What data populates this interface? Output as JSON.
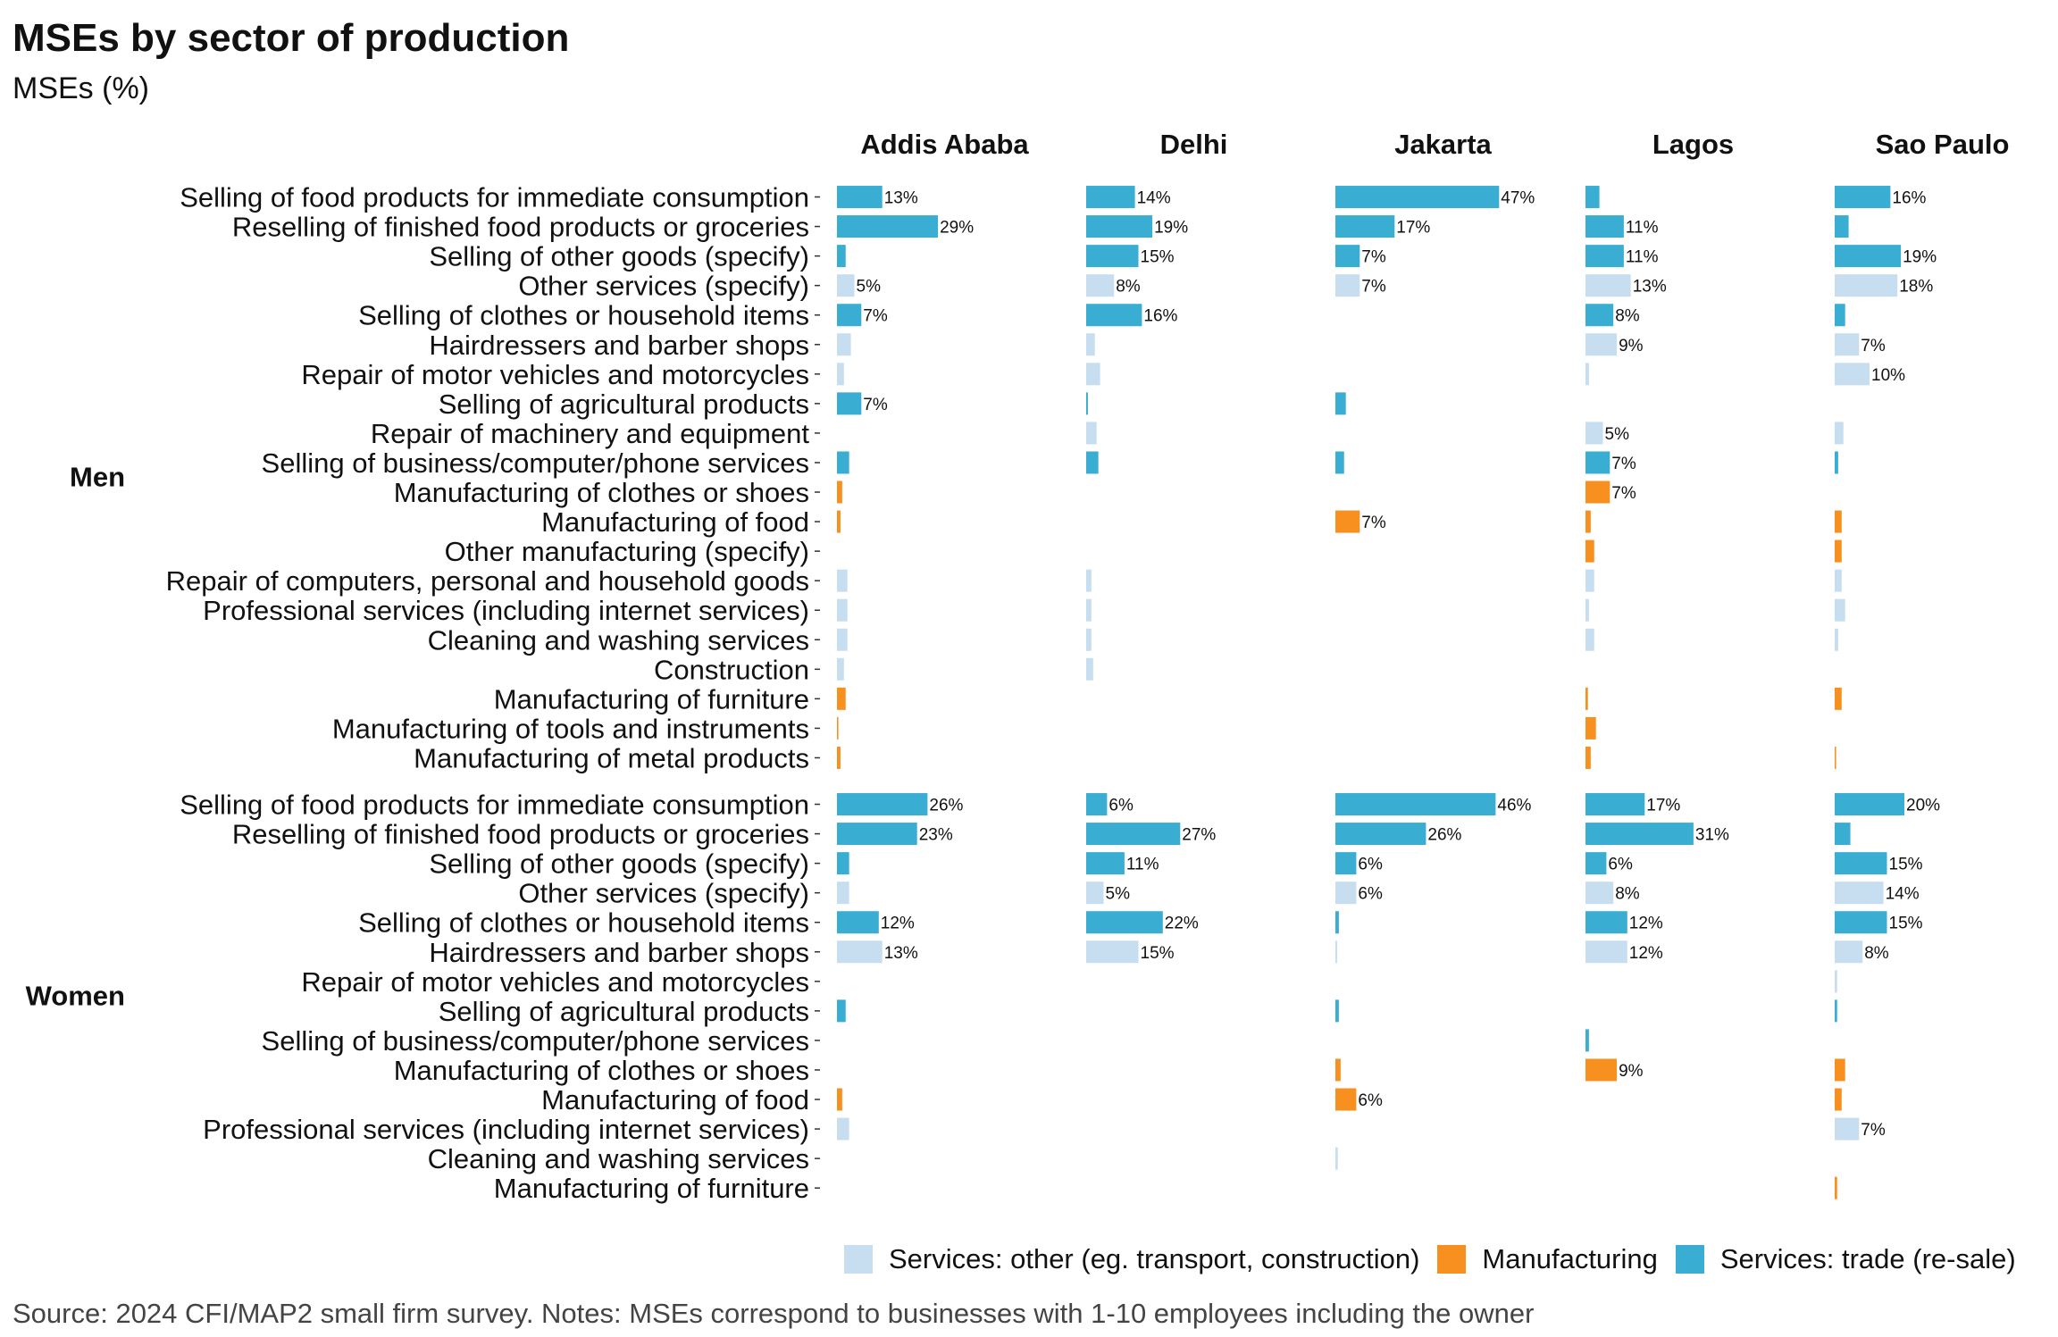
{
  "chart_data": {
    "type": "bar",
    "orientation": "horizontal",
    "title": "MSEs by sector of production",
    "subtitle": "MSEs (%)",
    "caption": "Source: 2024 CFI/MAP2 small firm survey. Notes: MSEs correspond to businesses with 1-10 employees including the owner",
    "columns": [
      "Addis Ababa",
      "Delhi",
      "Jakarta",
      "Lagos",
      "Sao Paulo"
    ],
    "legend_position": "bottom-right",
    "grid": false,
    "xlim": [
      0,
      50
    ],
    "categories": {
      "services_other": {
        "label": "Services: other (eg. transport, construction)",
        "color": "#c6def0"
      },
      "manufacturing": {
        "label": "Manufacturing",
        "color": "#f7901e"
      },
      "services_trade": {
        "label": "Services: trade (re-sale)",
        "color": "#3aaed2"
      }
    },
    "legend_order": [
      "services_other",
      "manufacturing",
      "services_trade"
    ],
    "panels": [
      {
        "label": "Men",
        "rows": [
          {
            "label": "Selling of food products for immediate consumption",
            "category": "services_trade",
            "values": [
              13,
              14,
              47,
              4,
              16
            ],
            "labels": [
              "13%",
              "14%",
              "47%",
              "",
              "16%"
            ]
          },
          {
            "label": "Reselling of finished food products or groceries",
            "category": "services_trade",
            "values": [
              29,
              19,
              17,
              11,
              4
            ],
            "labels": [
              "29%",
              "19%",
              "17%",
              "11%",
              ""
            ]
          },
          {
            "label": "Selling of other goods (specify)",
            "category": "services_trade",
            "values": [
              2.5,
              15,
              7,
              11,
              19
            ],
            "labels": [
              "",
              "15%",
              "7%",
              "11%",
              "19%"
            ]
          },
          {
            "label": "Other services (specify)",
            "category": "services_other",
            "values": [
              5,
              8,
              7,
              13,
              18
            ],
            "labels": [
              "5%",
              "8%",
              "7%",
              "13%",
              "18%"
            ]
          },
          {
            "label": "Selling of clothes or household items",
            "category": "services_trade",
            "values": [
              7,
              16,
              null,
              8,
              3
            ],
            "labels": [
              "7%",
              "16%",
              "",
              "8%",
              ""
            ]
          },
          {
            "label": "Hairdressers and barber shops",
            "category": "services_other",
            "values": [
              4,
              2.5,
              null,
              9,
              7
            ],
            "labels": [
              "",
              "",
              "",
              "9%",
              "7%"
            ]
          },
          {
            "label": "Repair of motor vehicles and motorcycles",
            "category": "services_other",
            "values": [
              2,
              4,
              null,
              1,
              10
            ],
            "labels": [
              "",
              "",
              "",
              "",
              "10%"
            ]
          },
          {
            "label": "Selling of agricultural products",
            "category": "services_trade",
            "values": [
              7,
              0.5,
              3,
              null,
              null
            ],
            "labels": [
              "7%",
              "",
              "",
              "",
              ""
            ]
          },
          {
            "label": "Repair of machinery and equipment",
            "category": "services_other",
            "values": [
              null,
              3,
              null,
              5,
              2.5
            ],
            "labels": [
              "",
              "",
              "",
              "5%",
              ""
            ]
          },
          {
            "label": "Selling of business/computer/phone services",
            "category": "services_trade",
            "values": [
              3.5,
              3.5,
              2.5,
              7,
              1
            ],
            "labels": [
              "",
              "",
              "",
              "7%",
              ""
            ]
          },
          {
            "label": "Manufacturing of clothes or shoes",
            "category": "manufacturing",
            "values": [
              1.5,
              null,
              null,
              7,
              null
            ],
            "labels": [
              "",
              "",
              "",
              "7%",
              ""
            ]
          },
          {
            "label": "Manufacturing of food",
            "category": "manufacturing",
            "values": [
              1,
              null,
              7,
              1.5,
              2
            ],
            "labels": [
              "",
              "",
              "7%",
              "",
              ""
            ]
          },
          {
            "label": "Other manufacturing (specify)",
            "category": "manufacturing",
            "values": [
              null,
              null,
              null,
              2.5,
              2
            ],
            "labels": [
              "",
              "",
              "",
              "",
              ""
            ]
          },
          {
            "label": "Repair of computers, personal and household goods",
            "category": "services_other",
            "values": [
              3,
              1.5,
              null,
              2.5,
              2
            ],
            "labels": [
              "",
              "",
              "",
              "",
              ""
            ]
          },
          {
            "label": "Professional services (including internet services)",
            "category": "services_other",
            "values": [
              3,
              1.5,
              null,
              1,
              3
            ],
            "labels": [
              "",
              "",
              "",
              "",
              ""
            ]
          },
          {
            "label": "Cleaning and washing services",
            "category": "services_other",
            "values": [
              3,
              1.5,
              null,
              2.5,
              1
            ],
            "labels": [
              "",
              "",
              "",
              "",
              ""
            ]
          },
          {
            "label": "Construction",
            "category": "services_other",
            "values": [
              2,
              2,
              null,
              null,
              null
            ],
            "labels": [
              "",
              "",
              "",
              "",
              ""
            ]
          },
          {
            "label": "Manufacturing of furniture",
            "category": "manufacturing",
            "values": [
              2.5,
              null,
              null,
              0.7,
              2
            ],
            "labels": [
              "",
              "",
              "",
              "",
              ""
            ]
          },
          {
            "label": "Manufacturing of tools and instruments",
            "category": "manufacturing",
            "values": [
              0.4,
              null,
              null,
              3,
              null
            ],
            "labels": [
              "",
              "",
              "",
              "",
              ""
            ]
          },
          {
            "label": "Manufacturing of metal products",
            "category": "manufacturing",
            "values": [
              1,
              null,
              null,
              1.5,
              0.4
            ],
            "labels": [
              "",
              "",
              "",
              "",
              ""
            ]
          }
        ]
      },
      {
        "label": "Women",
        "rows": [
          {
            "label": "Selling of food products for immediate consumption",
            "category": "services_trade",
            "values": [
              26,
              6,
              46,
              17,
              20
            ],
            "labels": [
              "26%",
              "6%",
              "46%",
              "17%",
              "20%"
            ]
          },
          {
            "label": "Reselling of finished food products or groceries",
            "category": "services_trade",
            "values": [
              23,
              27,
              26,
              31,
              4.5
            ],
            "labels": [
              "23%",
              "27%",
              "26%",
              "31%",
              ""
            ]
          },
          {
            "label": "Selling of other goods (specify)",
            "category": "services_trade",
            "values": [
              3.5,
              11,
              6,
              6,
              15
            ],
            "labels": [
              "",
              "11%",
              "6%",
              "6%",
              "15%"
            ]
          },
          {
            "label": "Other services (specify)",
            "category": "services_other",
            "values": [
              3.5,
              5,
              6,
              8,
              14
            ],
            "labels": [
              "",
              "5%",
              "6%",
              "8%",
              "14%"
            ]
          },
          {
            "label": "Selling of clothes or household items",
            "category": "services_trade",
            "values": [
              12,
              22,
              1,
              12,
              15
            ],
            "labels": [
              "12%",
              "22%",
              "",
              "12%",
              "15%"
            ]
          },
          {
            "label": "Hairdressers and barber shops",
            "category": "services_other",
            "values": [
              13,
              15,
              0.5,
              12,
              8
            ],
            "labels": [
              "13%",
              "15%",
              "",
              "12%",
              "8%"
            ]
          },
          {
            "label": "Repair of motor vehicles and motorcycles",
            "category": "services_other",
            "values": [
              null,
              null,
              null,
              null,
              0.7
            ],
            "labels": [
              "",
              "",
              "",
              "",
              ""
            ]
          },
          {
            "label": "Selling of agricultural products",
            "category": "services_trade",
            "values": [
              2.5,
              null,
              1,
              null,
              0.7
            ],
            "labels": [
              "",
              "",
              "",
              "",
              ""
            ]
          },
          {
            "label": "Selling of business/computer/phone services",
            "category": "services_trade",
            "values": [
              null,
              null,
              null,
              1,
              null
            ],
            "labels": [
              "",
              "",
              "",
              "",
              ""
            ]
          },
          {
            "label": "Manufacturing of clothes or shoes",
            "category": "manufacturing",
            "values": [
              null,
              null,
              1.5,
              9,
              3
            ],
            "labels": [
              "",
              "",
              "",
              "9%",
              ""
            ]
          },
          {
            "label": "Manufacturing of food",
            "category": "manufacturing",
            "values": [
              1.5,
              null,
              6,
              null,
              2
            ],
            "labels": [
              "",
              "",
              "6%",
              "",
              ""
            ]
          },
          {
            "label": "Professional services (including internet services)",
            "category": "services_other",
            "values": [
              3.5,
              null,
              null,
              null,
              7
            ],
            "labels": [
              "",
              "",
              "",
              "",
              "7%"
            ]
          },
          {
            "label": "Cleaning and washing services",
            "category": "services_other",
            "values": [
              null,
              null,
              0.7,
              null,
              null
            ],
            "labels": [
              "",
              "",
              "",
              "",
              ""
            ]
          },
          {
            "label": "Manufacturing of furniture",
            "category": "manufacturing",
            "values": [
              null,
              null,
              null,
              null,
              0.7
            ],
            "labels": [
              "",
              "",
              "",
              "",
              ""
            ]
          }
        ]
      }
    ]
  }
}
